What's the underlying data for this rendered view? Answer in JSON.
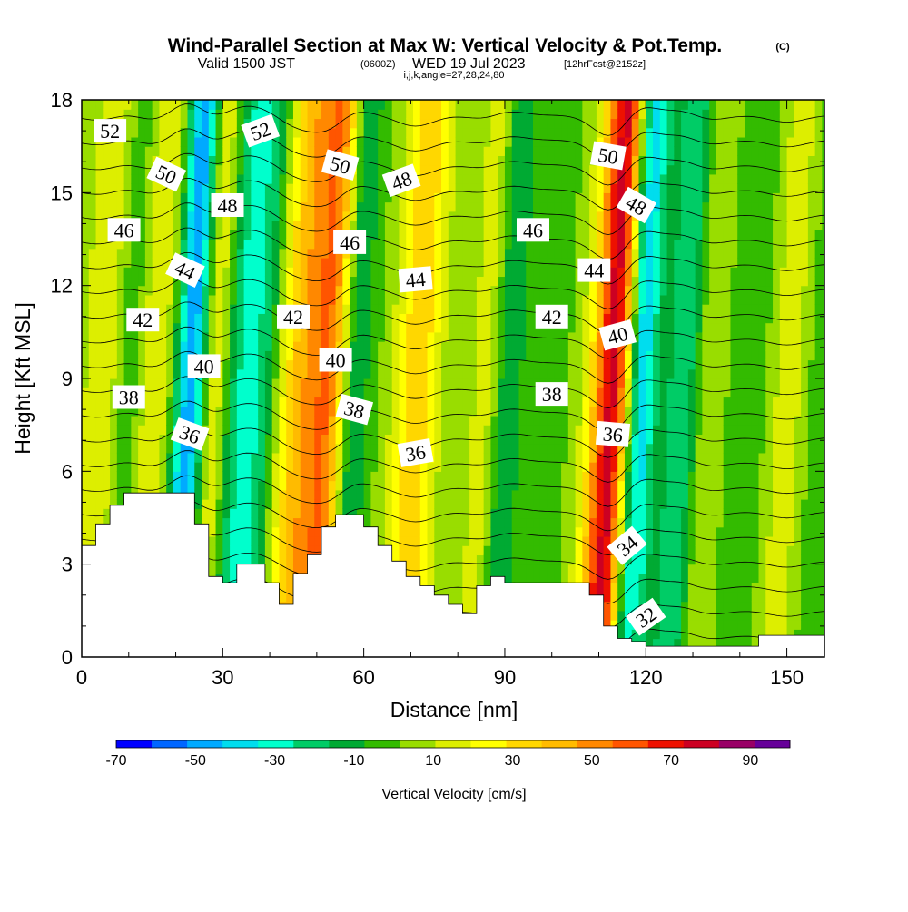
{
  "chart_data": {
    "type": "heatmap",
    "title": "Wind-Parallel Section at Max W: Vertical Velocity & Pot.Temp.",
    "copyright": "(C)",
    "subtitle_main": "Valid 1500 JST",
    "subtitle_utc": "(0600Z)",
    "subtitle_date": "WED 19 Jul 2023",
    "subtitle_fcst": "[12hrFcst@2152z]",
    "subtitle_ijk": "i,j,k,angle=27,28,24,80",
    "xlabel": "Distance [nm]",
    "ylabel": "Height [Kft MSL]",
    "xlim": [
      0,
      158
    ],
    "ylim": [
      0,
      18
    ],
    "xticks": [
      0,
      30,
      60,
      90,
      120,
      150
    ],
    "yticks": [
      0,
      3,
      6,
      9,
      12,
      15,
      18
    ],
    "colorbar": {
      "label": "Vertical Velocity [cm/s]",
      "min": -70,
      "max": 100,
      "step": 10,
      "tick_values": [
        -70,
        -50,
        -30,
        -10,
        10,
        30,
        50,
        70,
        90
      ],
      "colors": [
        "#0000ff",
        "#0066ff",
        "#00aaff",
        "#00ddee",
        "#00ffcc",
        "#00cc66",
        "#00aa33",
        "#33bb00",
        "#99dd00",
        "#ddee00",
        "#ffff00",
        "#ffd700",
        "#ffbb00",
        "#ff8800",
        "#ff5500",
        "#ee1100",
        "#cc0022",
        "#990066",
        "#660099"
      ]
    },
    "updrafts": [
      {
        "x": 4,
        "amp": 20
      },
      {
        "x": 15,
        "amp": 22
      },
      {
        "x": 27,
        "amp": 28
      },
      {
        "x": 46,
        "amp": 40
      },
      {
        "x": 53,
        "amp": 60
      },
      {
        "x": 71,
        "amp": 40
      },
      {
        "x": 87,
        "amp": 22
      },
      {
        "x": 113,
        "amp": 90
      },
      {
        "x": 133,
        "amp": 20
      },
      {
        "x": 150,
        "amp": 25
      }
    ],
    "downdrafts": [
      {
        "x": 10,
        "amp": 15
      },
      {
        "x": 23,
        "amp": 70
      },
      {
        "x": 33,
        "amp": 30
      },
      {
        "x": 38,
        "amp": 25
      },
      {
        "x": 57,
        "amp": 40
      },
      {
        "x": 90,
        "amp": 30
      },
      {
        "x": 118,
        "amp": 60
      },
      {
        "x": 128,
        "amp": 25
      }
    ],
    "terrain_x": [
      0,
      3,
      6,
      9,
      12,
      15,
      18,
      21,
      24,
      27,
      30,
      33,
      36,
      39,
      42,
      45,
      48,
      51,
      54,
      57,
      60,
      63,
      66,
      69,
      72,
      75,
      78,
      81,
      84,
      87,
      90,
      93,
      96,
      99,
      102,
      105,
      108,
      111,
      114,
      117,
      120,
      123,
      126,
      129,
      132,
      135,
      138,
      141,
      144,
      147,
      150,
      153,
      156,
      158
    ],
    "terrain_kft": [
      3.6,
      4.3,
      4.9,
      5.3,
      5.3,
      5.3,
      5.3,
      5.3,
      4.3,
      2.6,
      2.4,
      3.0,
      3.0,
      2.4,
      1.7,
      2.7,
      3.3,
      4.2,
      4.6,
      4.6,
      4.2,
      3.6,
      3.1,
      2.6,
      2.3,
      2.0,
      1.7,
      1.4,
      2.3,
      2.6,
      2.4,
      2.4,
      2.4,
      2.4,
      2.4,
      2.4,
      2.0,
      1.0,
      0.6,
      0.5,
      0.35,
      0.35,
      0.35,
      0.35,
      0.35,
      0.35,
      0.35,
      0.35,
      0.7,
      0.7,
      0.7,
      0.7,
      0.7,
      0.7
    ],
    "theta_levels": [
      32,
      33,
      34,
      35,
      36,
      37,
      38,
      39,
      40,
      41,
      42,
      43,
      44,
      45,
      46,
      47,
      48,
      49,
      50,
      51,
      52,
      53,
      54
    ],
    "contour_labels": [
      {
        "text": "52",
        "x": 6,
        "y": 17.0,
        "rot": 0
      },
      {
        "text": "52",
        "x": 38,
        "y": 17.0,
        "rot": -20
      },
      {
        "text": "50",
        "x": 18,
        "y": 15.6,
        "rot": 25
      },
      {
        "text": "50",
        "x": 55,
        "y": 15.9,
        "rot": 15
      },
      {
        "text": "50",
        "x": 112,
        "y": 16.2,
        "rot": 10
      },
      {
        "text": "48",
        "x": 31,
        "y": 14.6,
        "rot": 0
      },
      {
        "text": "48",
        "x": 68,
        "y": 15.4,
        "rot": -20
      },
      {
        "text": "48",
        "x": 118,
        "y": 14.6,
        "rot": 30
      },
      {
        "text": "46",
        "x": 9,
        "y": 13.8,
        "rot": 0
      },
      {
        "text": "46",
        "x": 57,
        "y": 13.4,
        "rot": 0
      },
      {
        "text": "46",
        "x": 96,
        "y": 13.8,
        "rot": 0
      },
      {
        "text": "44",
        "x": 22,
        "y": 12.5,
        "rot": 25
      },
      {
        "text": "44",
        "x": 71,
        "y": 12.2,
        "rot": -5
      },
      {
        "text": "44",
        "x": 109,
        "y": 12.5,
        "rot": 0
      },
      {
        "text": "42",
        "x": 13,
        "y": 10.9,
        "rot": 0
      },
      {
        "text": "42",
        "x": 45,
        "y": 11.0,
        "rot": 0
      },
      {
        "text": "42",
        "x": 100,
        "y": 11.0,
        "rot": 0
      },
      {
        "text": "40",
        "x": 26,
        "y": 9.4,
        "rot": 0
      },
      {
        "text": "40",
        "x": 54,
        "y": 9.6,
        "rot": 0
      },
      {
        "text": "40",
        "x": 114,
        "y": 10.4,
        "rot": -15
      },
      {
        "text": "38",
        "x": 10,
        "y": 8.4,
        "rot": 0
      },
      {
        "text": "38",
        "x": 58,
        "y": 8.0,
        "rot": 15
      },
      {
        "text": "38",
        "x": 100,
        "y": 8.5,
        "rot": 0
      },
      {
        "text": "36",
        "x": 23,
        "y": 7.2,
        "rot": 20
      },
      {
        "text": "36",
        "x": 71,
        "y": 6.6,
        "rot": -10
      },
      {
        "text": "36",
        "x": 113,
        "y": 7.2,
        "rot": 5
      },
      {
        "text": "34",
        "x": 116,
        "y": 3.6,
        "rot": -40
      },
      {
        "text": "32",
        "x": 120,
        "y": 1.3,
        "rot": -35
      }
    ]
  }
}
